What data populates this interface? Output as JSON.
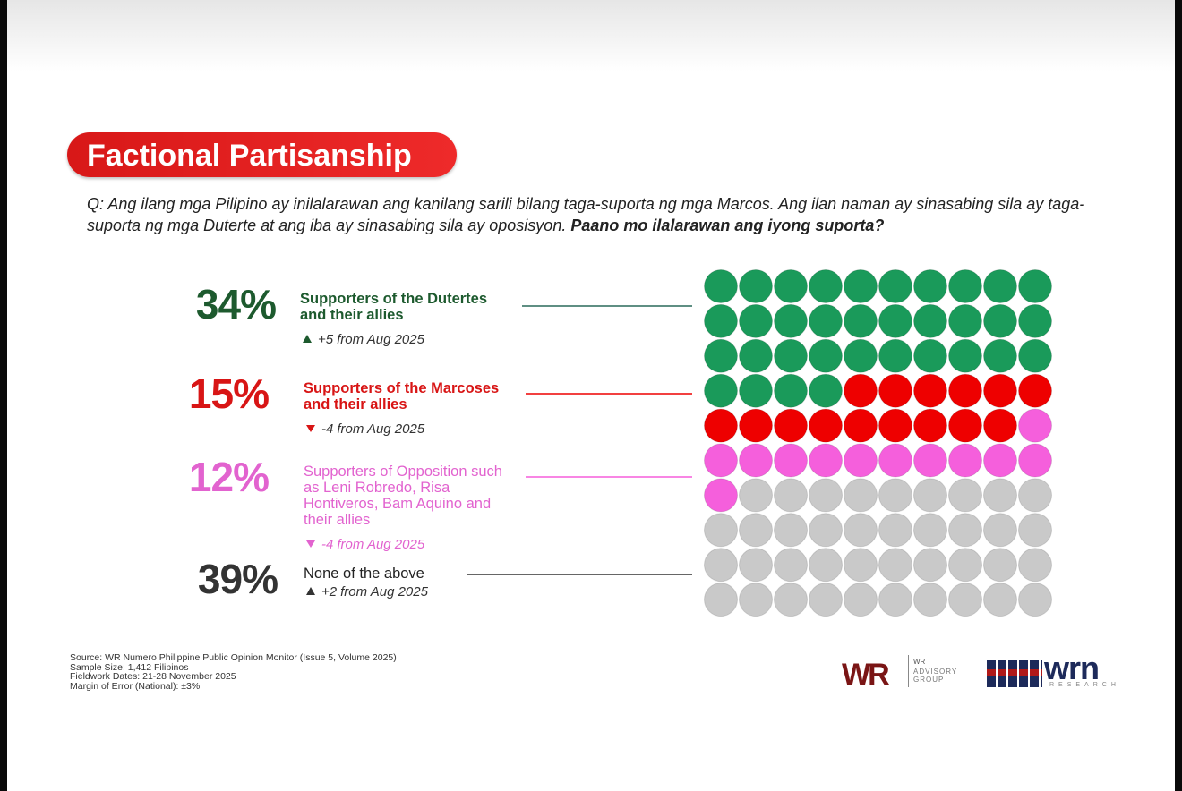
{
  "chart_data": {
    "type": "waffle",
    "title": "Factional Partisanship",
    "question": "Q: Ang ilang mga Pilipino ay inilalarawan ang kanilang sarili bilang taga-suporta ng mga Marcos. Ang ilan naman ay sinasabing sila ay taga-suporta ng mga Duterte at ang iba ay sinasabing sila ay oposisyon.",
    "question_emphasis": "Paano mo ilalarawan ang iyong suporta?",
    "categories": [
      "Supporters of the Dutertes and their allies",
      "Supporters of the Marcoses and their allies",
      "Supporters of Opposition such as Leni Robredo, Risa Hontiveros, Bam Aquino and their allies",
      "None of the above"
    ],
    "values": [
      34,
      15,
      12,
      39
    ],
    "value_labels": [
      "34%",
      "15%",
      "12%",
      "39%"
    ],
    "colors": [
      "#1a9a5a",
      "#ee0000",
      "#f55fdc",
      "#c9c9c9"
    ],
    "label_colors": [
      "#1d5a2e",
      "#d81515",
      "#e263cf",
      "#333333"
    ],
    "changes": [
      5,
      -4,
      -4,
      2
    ],
    "change_labels": [
      "+5",
      "-4",
      "-4",
      "+2"
    ],
    "change_suffix": "from Aug 2025",
    "grid_columns": 10,
    "footer": [
      "Source: WR Numero Philippine Public Opinion Monitor (Issue 5, Volume 2025)",
      "Sample Size: 1,412 Filipinos",
      "Fieldwork Dates: 21-28 November 2025",
      "Margin of Error (National): ±3%"
    ],
    "logos": {
      "wr": "WR",
      "wr_sub": "ADVISORY GROUP",
      "wr_top": "WR",
      "wrn": "wrn",
      "wrn_sub": "RESEARCH"
    }
  }
}
